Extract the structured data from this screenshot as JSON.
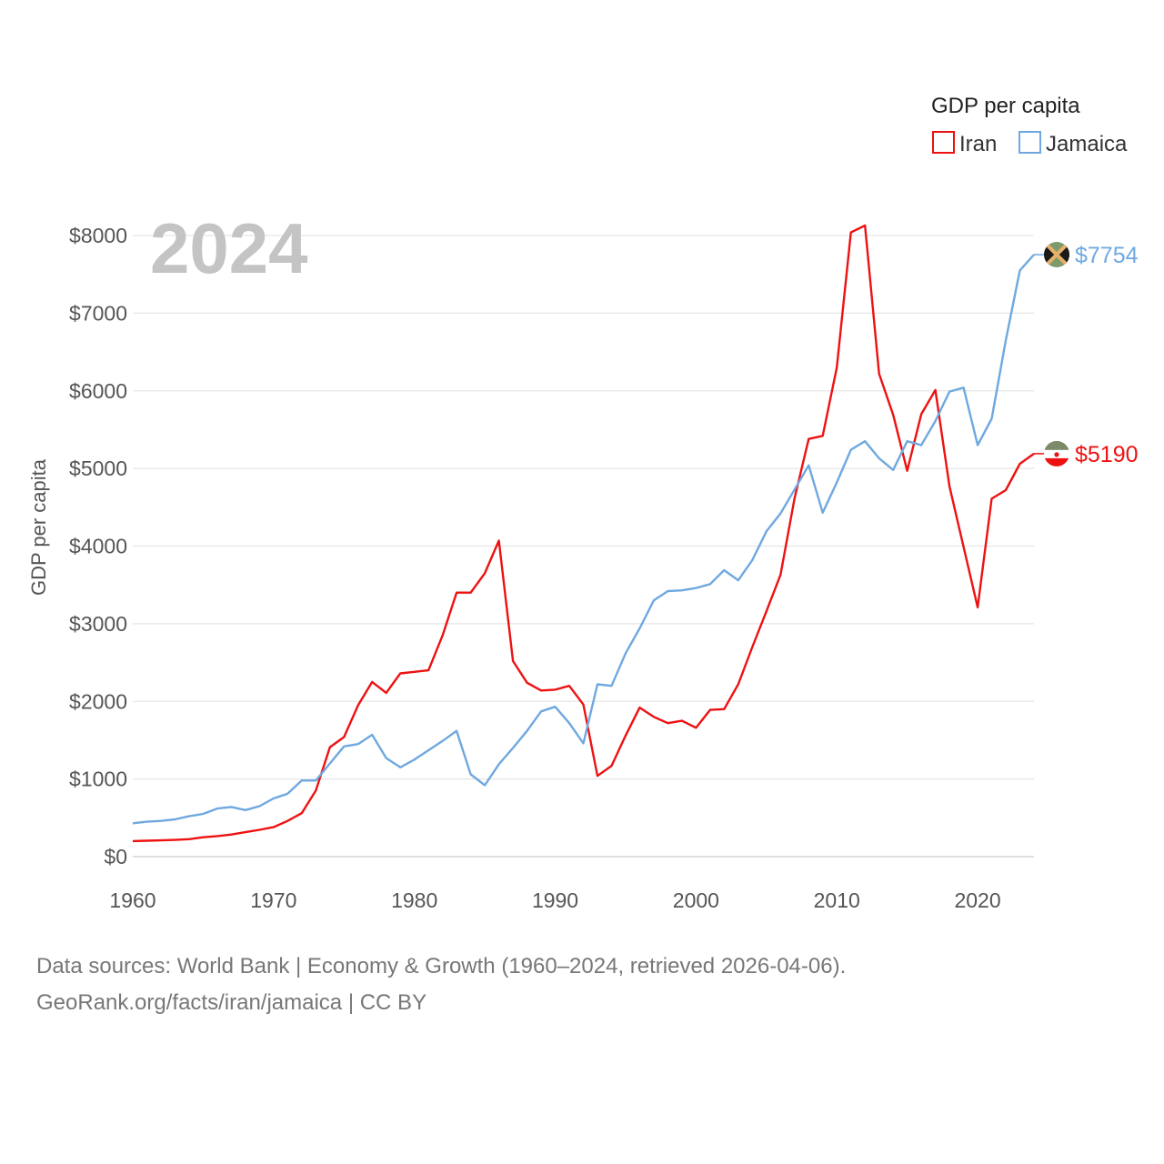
{
  "chart_data": {
    "type": "line",
    "year_display": "2024",
    "ylabel": "GDP per capita",
    "legend_title": "GDP per capita",
    "legend_position": "top-right",
    "xlim": [
      1960,
      2024
    ],
    "ylim": [
      0,
      8000
    ],
    "x_ticks": [
      1960,
      1970,
      1980,
      1990,
      2000,
      2010,
      2020
    ],
    "y_ticks": [
      {
        "value": 0,
        "label": "$0"
      },
      {
        "value": 1000,
        "label": "$1000"
      },
      {
        "value": 2000,
        "label": "$2000"
      },
      {
        "value": 3000,
        "label": "$3000"
      },
      {
        "value": 4000,
        "label": "$4000"
      },
      {
        "value": 5000,
        "label": "$5000"
      },
      {
        "value": 6000,
        "label": "$6000"
      },
      {
        "value": 7000,
        "label": "$7000"
      },
      {
        "value": 8000,
        "label": "$8000"
      }
    ],
    "x_start": 1960,
    "series": [
      {
        "name": "Iran",
        "color": "#ee1111",
        "end_label": "$5190",
        "flag_icon": "iran-flag-icon",
        "values": [
          200,
          205,
          210,
          215,
          225,
          250,
          265,
          285,
          315,
          345,
          380,
          460,
          560,
          850,
          1410,
          1540,
          1950,
          2250,
          2110,
          2360,
          2380,
          2400,
          2850,
          3400,
          3400,
          3650,
          4070,
          2520,
          2240,
          2140,
          2150,
          2200,
          1960,
          1040,
          1170,
          1560,
          1920,
          1800,
          1720,
          1750,
          1660,
          1890,
          1900,
          2220,
          2700,
          3160,
          3630,
          4620,
          5380,
          5420,
          6300,
          8040,
          8130,
          6220,
          5690,
          4970,
          5700,
          6010,
          4770,
          3990,
          3210,
          4610,
          4720,
          5060,
          5190
        ]
      },
      {
        "name": "Jamaica",
        "color": "#6fa8e0",
        "end_label": "$7754",
        "flag_icon": "jamaica-flag-icon",
        "values": [
          430,
          450,
          460,
          480,
          520,
          550,
          620,
          640,
          600,
          650,
          750,
          810,
          980,
          980,
          1200,
          1420,
          1450,
          1570,
          1270,
          1150,
          1250,
          1370,
          1490,
          1620,
          1060,
          920,
          1190,
          1400,
          1620,
          1870,
          1930,
          1720,
          1460,
          2220,
          2200,
          2620,
          2940,
          3300,
          3420,
          3430,
          3460,
          3510,
          3690,
          3560,
          3820,
          4190,
          4420,
          4730,
          5040,
          4430,
          4820,
          5240,
          5350,
          5130,
          4980,
          5350,
          5300,
          5610,
          5990,
          6040,
          5300,
          5640,
          6650,
          7550,
          7754
        ]
      }
    ]
  },
  "footer": {
    "line1": "Data sources: World Bank | Economy & Growth (1960–2024, retrieved 2026-04-06).",
    "line2": "GeoRank.org/facts/iran/jamaica | CC BY"
  }
}
